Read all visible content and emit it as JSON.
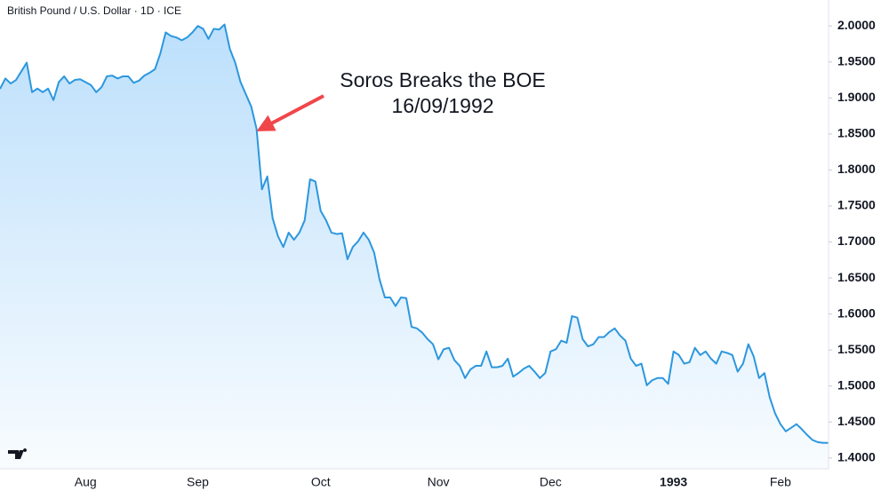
{
  "chart_data": {
    "type": "area",
    "title": "British Pound / U.S. Dollar · 1D · ICE",
    "annotation": [
      "Soros Breaks the BOE",
      "16/09/1992"
    ],
    "color": "#2c97de",
    "categories": [
      null,
      null,
      null,
      null,
      null,
      null,
      null,
      null,
      null,
      null,
      null,
      null,
      null,
      null,
      null,
      null,
      "Aug",
      null,
      null,
      null,
      null,
      null,
      null,
      null,
      null,
      null,
      null,
      null,
      null,
      null,
      null,
      null,
      null,
      null,
      null,
      null,
      null,
      "Sep",
      null,
      null,
      null,
      null,
      null,
      null,
      null,
      null,
      null,
      null,
      null,
      null,
      null,
      null,
      null,
      null,
      null,
      null,
      null,
      null,
      null,
      null,
      "Oct",
      null,
      null,
      null,
      null,
      null,
      null,
      null,
      null,
      null,
      null,
      null,
      null,
      null,
      null,
      null,
      null,
      null,
      null,
      null,
      null,
      null,
      "Nov",
      null,
      null,
      null,
      null,
      null,
      null,
      null,
      null,
      null,
      null,
      null,
      null,
      null,
      null,
      null,
      null,
      null,
      null,
      null,
      null,
      "Dec",
      null,
      null,
      null,
      null,
      null,
      null,
      null,
      null,
      null,
      null,
      null,
      null,
      null,
      null,
      null,
      null,
      null,
      null,
      null,
      null,
      null,
      null,
      "1993",
      null,
      null,
      null,
      null,
      null,
      null,
      null,
      null,
      null,
      null,
      null,
      null,
      null,
      null,
      null,
      null,
      null,
      null,
      null,
      "Feb",
      null,
      null,
      null,
      null,
      null,
      null,
      null,
      null,
      null
    ],
    "values": [
      1.9125,
      1.927,
      1.92,
      1.925,
      1.937,
      1.949,
      1.908,
      1.913,
      1.908,
      1.913,
      1.897,
      1.922,
      1.93,
      1.92,
      1.925,
      1.926,
      1.922,
      1.918,
      1.908,
      1.915,
      1.93,
      1.931,
      1.927,
      1.93,
      1.93,
      1.921,
      1.924,
      1.931,
      1.935,
      1.94,
      1.962,
      1.991,
      1.986,
      1.984,
      1.98,
      1.984,
      1.991,
      2.0,
      1.996,
      1.982,
      1.996,
      1.995,
      2.002,
      1.968,
      1.949,
      1.922,
      1.905,
      1.888,
      1.857,
      1.773,
      1.791,
      1.733,
      1.708,
      1.693,
      1.713,
      1.703,
      1.713,
      1.73,
      1.787,
      1.784,
      1.743,
      1.73,
      1.713,
      1.711,
      1.712,
      1.676,
      1.693,
      1.701,
      1.713,
      1.703,
      1.685,
      1.648,
      1.623,
      1.623,
      1.611,
      1.623,
      1.622,
      1.582,
      1.58,
      1.574,
      1.565,
      1.558,
      1.537,
      1.551,
      1.553,
      1.536,
      1.528,
      1.511,
      1.523,
      1.528,
      1.528,
      1.548,
      1.526,
      1.526,
      1.528,
      1.538,
      1.513,
      1.518,
      1.524,
      1.528,
      1.52,
      1.511,
      1.518,
      1.548,
      1.551,
      1.563,
      1.56,
      1.597,
      1.595,
      1.565,
      1.555,
      1.558,
      1.568,
      1.568,
      1.575,
      1.58,
      1.57,
      1.563,
      1.538,
      1.528,
      1.531,
      1.501,
      1.508,
      1.511,
      1.511,
      1.503,
      1.548,
      1.543,
      1.531,
      1.533,
      1.553,
      1.543,
      1.548,
      1.538,
      1.531,
      1.548,
      1.546,
      1.543,
      1.52,
      1.531,
      1.558,
      1.541,
      1.511,
      1.518,
      1.484,
      1.462,
      1.447,
      1.437,
      1.442,
      1.447,
      1.44,
      1.432,
      1.425,
      1.422,
      1.421,
      1.421
    ],
    "ylim": [
      1.385,
      2.036
    ],
    "yticks": [
      {
        "value": 1.4,
        "label": "1.4000"
      },
      {
        "value": 1.45,
        "label": "1.4500"
      },
      {
        "value": 1.5,
        "label": "1.5000"
      },
      {
        "value": 1.55,
        "label": "1.5500"
      },
      {
        "value": 1.6,
        "label": "1.6000"
      },
      {
        "value": 1.65,
        "label": "1.6500"
      },
      {
        "value": 1.7,
        "label": "1.7000"
      },
      {
        "value": 1.75,
        "label": "1.7500"
      },
      {
        "value": 1.8,
        "label": "1.8000"
      },
      {
        "value": 1.85,
        "label": "1.8500"
      },
      {
        "value": 1.9,
        "label": "1.9000"
      },
      {
        "value": 1.95,
        "label": "1.9500"
      },
      {
        "value": 2.0,
        "label": "2.0000"
      }
    ]
  }
}
